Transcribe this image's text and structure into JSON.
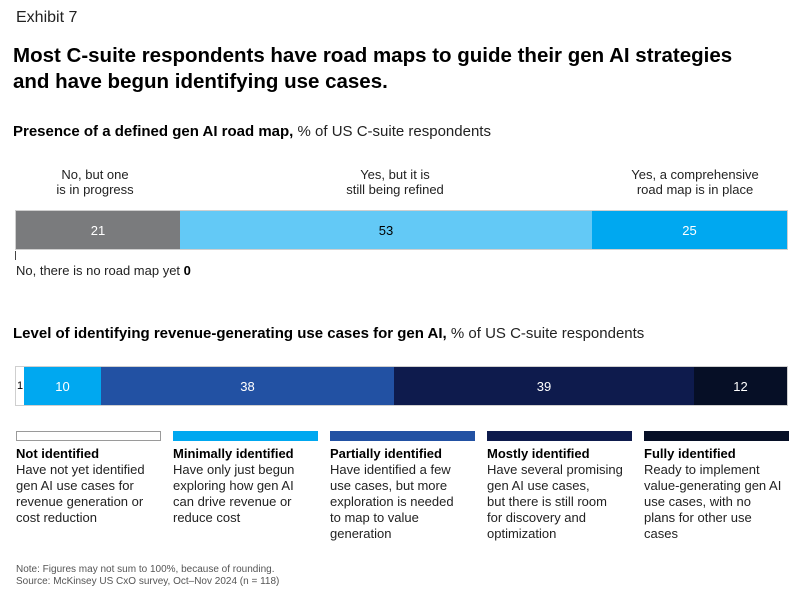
{
  "header": {
    "exhibit": "Exhibit 7",
    "title_line1": "Most C-suite respondents have road maps to guide their gen AI strategies",
    "title_line2": "and have begun identifying use cases."
  },
  "chart_data": [
    {
      "type": "bar",
      "orientation": "horizontal-stacked",
      "title_bold": "Presence of a defined gen AI road map,",
      "title_rest": " % of US C-suite respondents",
      "categories": [
        {
          "label_line1": "No, but one",
          "label_line2": "is in progress"
        },
        {
          "label_line1": "Yes, but it is",
          "label_line2": "still being refined"
        },
        {
          "label_line1": "Yes, a comprehensive",
          "label_line2": "road map is in place"
        }
      ],
      "values": [
        21,
        53,
        25
      ],
      "colors": [
        "#7a7b7d",
        "#63c9f6",
        "#00a8f0"
      ],
      "text_colors": [
        "#ffffff",
        "#000000",
        "#ffffff"
      ],
      "zero_category": {
        "label": "No, there is no road map yet ",
        "value": "0"
      }
    },
    {
      "type": "bar",
      "orientation": "horizontal-stacked",
      "title_bold": "Level of identifying revenue-generating use cases for gen AI,",
      "title_rest": " % of US C-suite respondents",
      "values": [
        1,
        10,
        38,
        39,
        12
      ],
      "colors": [
        "#ffffff",
        "#00a8f0",
        "#2251a3",
        "#0e1b4d",
        "#060f26"
      ],
      "text_colors": [
        "#000000",
        "#ffffff",
        "#ffffff",
        "#ffffff",
        "#ffffff"
      ],
      "legend": [
        {
          "title": "Not identified",
          "desc": [
            "Have not yet identified",
            "gen AI use cases for",
            "revenue generation or",
            "cost reduction"
          ]
        },
        {
          "title": "Minimally identified",
          "desc": [
            "Have only just begun",
            "exploring how gen AI",
            "can drive revenue or",
            "reduce cost"
          ]
        },
        {
          "title": "Partially identified",
          "desc": [
            "Have identified a few",
            "use cases, but more",
            "exploration is needed",
            "to map to value",
            "generation"
          ]
        },
        {
          "title": "Mostly identified",
          "desc": [
            "Have several promising",
            "gen AI use cases,",
            "but there is still room",
            "for discovery and",
            "optimization"
          ]
        },
        {
          "title": "Fully identified",
          "desc": [
            "Ready to implement",
            "value-generating gen AI",
            "use cases, with no",
            "plans for other use",
            "cases"
          ]
        }
      ]
    }
  ],
  "footer": {
    "note": "Note: Figures may not sum to 100%, because of rounding.",
    "source": "Source: McKinsey US CxO survey, Oct–Nov 2024 (n = 118)"
  }
}
